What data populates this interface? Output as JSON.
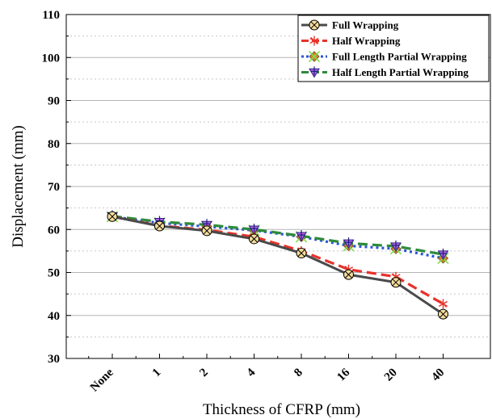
{
  "chart_data": {
    "type": "line",
    "title": "",
    "xlabel": "Thickness of CFRP (mm)",
    "ylabel": "Displacement (mm)",
    "categories": [
      "None",
      "1",
      "2",
      "4",
      "8",
      "16",
      "20",
      "40"
    ],
    "ylim": [
      30,
      110
    ],
    "yticks": [
      30,
      40,
      50,
      60,
      70,
      80,
      90,
      100,
      110
    ],
    "grid": true,
    "legend_position": "top-right",
    "series": [
      {
        "name": "Full Wrapping",
        "values": [
          63.0,
          60.8,
          59.7,
          57.8,
          54.5,
          49.5,
          47.7,
          40.3
        ],
        "color": "#4a4a4a",
        "line_style": "solid",
        "marker": "circle-x"
      },
      {
        "name": "Half Wrapping",
        "values": [
          63.0,
          60.9,
          59.9,
          58.3,
          55.0,
          50.7,
          49.0,
          42.7
        ],
        "color": "#e8322b",
        "line_style": "dashed",
        "marker": "asterisk"
      },
      {
        "name": "Full Length Partial Wrapping",
        "values": [
          63.0,
          61.5,
          60.7,
          59.8,
          58.3,
          56.2,
          55.5,
          53.3
        ],
        "color": "#2b57d6",
        "line_style": "dotted",
        "marker": "diamond-x"
      },
      {
        "name": "Half Length Partial Wrapping",
        "values": [
          63.1,
          61.8,
          61.1,
          60.0,
          58.5,
          56.8,
          56.1,
          54.2
        ],
        "color": "#2e8b3a",
        "line_style": "dashed",
        "marker": "triangle-down-plus"
      }
    ]
  }
}
